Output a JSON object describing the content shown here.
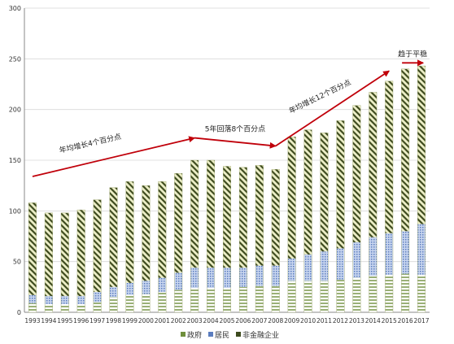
{
  "chart_data": {
    "type": "bar",
    "stacked": true,
    "categories": [
      "1993",
      "1994",
      "1995",
      "1996",
      "1997",
      "1998",
      "1999",
      "2000",
      "2001",
      "2002",
      "2003",
      "2004",
      "2005",
      "2006",
      "2007",
      "2008",
      "2009",
      "2010",
      "2011",
      "2012",
      "2013",
      "2014",
      "2015",
      "2016",
      "2017"
    ],
    "series": [
      {
        "name": "政府",
        "color": "#6f8f3c",
        "values": [
          9,
          8,
          8,
          8,
          10,
          15,
          17,
          18,
          20,
          22,
          24,
          24,
          24,
          25,
          26,
          26,
          31,
          31,
          31,
          32,
          34,
          36,
          37,
          38,
          37
        ]
      },
      {
        "name": "居民",
        "color": "#5b7dbf",
        "values": [
          8,
          8,
          8,
          8,
          10,
          10,
          12,
          13,
          14,
          17,
          20,
          20,
          20,
          19,
          20,
          20,
          22,
          26,
          29,
          31,
          35,
          38,
          41,
          42,
          50
        ]
      },
      {
        "name": "非金融企业",
        "color": "#3d4a1e",
        "values": [
          91,
          82,
          82,
          85,
          91,
          98,
          100,
          94,
          95,
          98,
          106,
          106,
          100,
          99,
          99,
          95,
          120,
          123,
          117,
          126,
          135,
          143,
          150,
          160,
          156
        ]
      }
    ],
    "ylim": [
      0,
      300
    ],
    "yticks": [
      0,
      50,
      100,
      150,
      200,
      250,
      300
    ],
    "grid": true,
    "legend": "bottom",
    "annotations": [
      {
        "text": "年均增长4个百分点",
        "from": {
          "x": "1993",
          "y": 134
        },
        "to": {
          "x": "2003",
          "y": 172
        }
      },
      {
        "text": "5年回落8个百分点",
        "from": {
          "x": "2003",
          "y": 172
        },
        "to": {
          "x": "2008",
          "y": 164
        }
      },
      {
        "text": "年均增长12个百分点",
        "from": {
          "x": "2008",
          "y": 164
        },
        "to": {
          "x": "2015",
          "y": 238
        }
      },
      {
        "text": "趋于平稳",
        "from": {
          "x": "2016",
          "y": 246
        },
        "to": {
          "x": "2017",
          "y": 246
        }
      }
    ]
  }
}
